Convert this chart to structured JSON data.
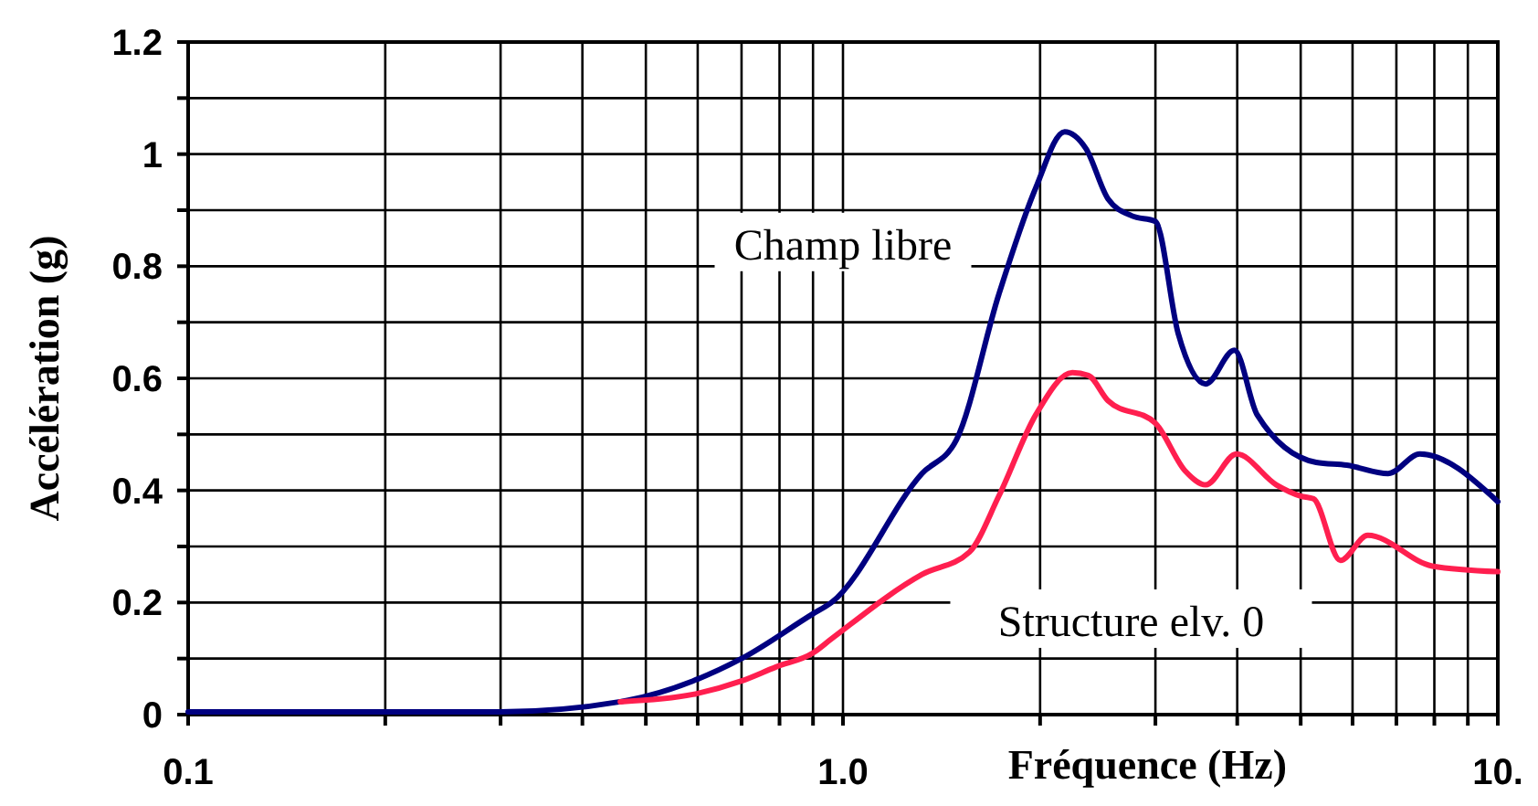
{
  "chart_data": {
    "type": "line",
    "xlabel": "Fréquence (Hz)",
    "ylabel": "Accélération (g)",
    "log": "x",
    "grid": true,
    "legend": false,
    "xlim": [
      0.1,
      10
    ],
    "ylim": [
      0,
      1.2
    ],
    "xticks": [
      0.1,
      {
        "value": 0.2,
        "label": null
      },
      {
        "value": 0.3,
        "label": null
      },
      {
        "value": 0.4,
        "label": null
      },
      {
        "value": 0.5,
        "label": null
      },
      {
        "value": 0.6,
        "label": null
      },
      {
        "value": 0.7,
        "label": null
      },
      {
        "value": 0.8,
        "label": null
      },
      {
        "value": 0.9,
        "label": null
      },
      {
        "value": 1,
        "label": "1.0"
      },
      {
        "value": 2,
        "label": null
      },
      {
        "value": 3,
        "label": null
      },
      {
        "value": 4,
        "label": null
      },
      {
        "value": 5,
        "label": null
      },
      {
        "value": 6,
        "label": null
      },
      {
        "value": 7,
        "label": null
      },
      {
        "value": 8,
        "label": null
      },
      {
        "value": 9,
        "label": null
      },
      {
        "value": 10,
        "label": "10."
      }
    ],
    "yticks": [
      0,
      {
        "value": 0.1,
        "label": null
      },
      0.2,
      {
        "value": 0.3,
        "label": null
      },
      0.4,
      {
        "value": 0.5,
        "label": null
      },
      0.6,
      {
        "value": 0.7,
        "label": null
      },
      0.8,
      {
        "value": 0.9,
        "label": null
      },
      1,
      {
        "value": 1.1,
        "label": null
      },
      1.2
    ],
    "series": [
      {
        "name": "Champ libre",
        "color": "#000080",
        "x": [
          0.1,
          0.2,
          0.3,
          0.457,
          0.59,
          0.7,
          0.9,
          0.96,
          1.32,
          1.49,
          1.73,
          1.97,
          2.18,
          2.35,
          2.54,
          2.76,
          3.0,
          3.25,
          3.58,
          3.96,
          4.29,
          5.28,
          5.88,
          6.8,
          7.6,
          10
        ],
        "values": [
          0.005,
          0.005,
          0.005,
          0.023,
          0.06,
          0.1,
          0.18,
          0.2,
          0.43,
          0.49,
          0.75,
          0.94,
          1.04,
          1.01,
          0.92,
          0.89,
          0.88,
          0.68,
          0.59,
          0.65,
          0.535,
          0.45,
          0.445,
          0.43,
          0.465,
          0.38
        ]
      },
      {
        "name": "Structure elv. 0",
        "color": "#ff1f4f",
        "x": [
          0.457,
          0.59,
          0.7,
          0.79,
          0.9,
          0.96,
          1.32,
          1.56,
          1.73,
          1.97,
          2.24,
          2.37,
          2.54,
          3.0,
          3.33,
          3.58,
          3.99,
          4.59,
          5.0,
          5.23,
          5.75,
          6.33,
          7.94,
          10
        ],
        "values": [
          0.023,
          0.036,
          0.06,
          0.085,
          0.11,
          0.135,
          0.25,
          0.29,
          0.39,
          0.535,
          0.61,
          0.605,
          0.56,
          0.52,
          0.435,
          0.41,
          0.465,
          0.41,
          0.39,
          0.385,
          0.275,
          0.32,
          0.265,
          0.255
        ]
      }
    ]
  }
}
